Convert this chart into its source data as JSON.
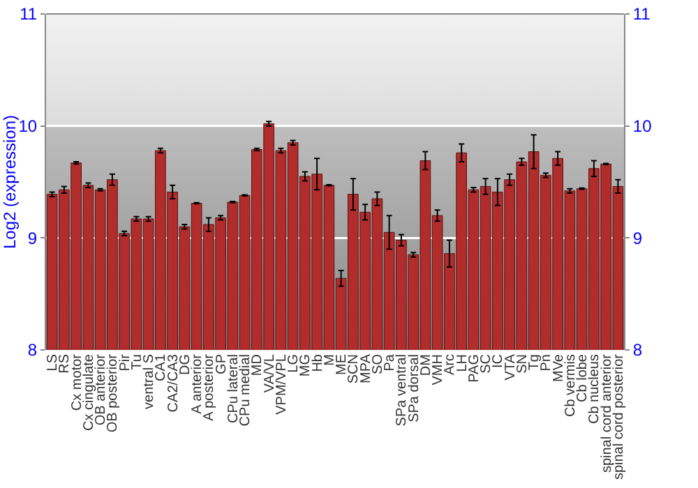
{
  "chart_data": {
    "type": "bar",
    "ylabel": "Log2 (expression)",
    "categories": [
      "LS",
      "RS",
      "Cx motor",
      "Cx cingulate",
      "OB anterior",
      "OB posterior",
      "Pir",
      "Tu",
      "ventral S",
      "CA1",
      "CA2/CA3",
      "DG",
      "A anterior",
      "A posterior",
      "GP",
      "CPu lateral",
      "CPu medial",
      "MD",
      "VA/VL",
      "VPM/VPL",
      "LG",
      "MG",
      "Hb",
      "M",
      "ME",
      "SCN",
      "MPA",
      "SO",
      "Pa",
      "SPa ventral",
      "SPa dorsal",
      "DM",
      "VMH",
      "Arc",
      "LH",
      "PAG",
      "SC",
      "IC",
      "VTA",
      "SN",
      "Tg",
      "Pn",
      "MVe",
      "Cb vermis",
      "Cb lobe",
      "Cb nucleus",
      "spinal cord anterior",
      "spinal cord posterior"
    ],
    "values": [
      9.39,
      9.43,
      9.67,
      9.47,
      9.43,
      9.52,
      9.04,
      9.17,
      9.17,
      9.78,
      9.41,
      9.1,
      9.31,
      9.12,
      9.18,
      9.32,
      9.38,
      9.79,
      10.02,
      9.78,
      9.85,
      9.55,
      9.57,
      9.47,
      8.64,
      9.39,
      9.23,
      9.35,
      9.05,
      8.98,
      8.85,
      9.69,
      9.2,
      8.86,
      9.76,
      9.43,
      9.46,
      9.41,
      9.52,
      9.68,
      9.77,
      9.56,
      9.71,
      9.42,
      9.44,
      9.62,
      9.66,
      9.46
    ],
    "errors": [
      0.02,
      0.03,
      0.01,
      0.02,
      0.01,
      0.05,
      0.02,
      0.02,
      0.02,
      0.02,
      0.06,
      0.02,
      0.005,
      0.06,
      0.02,
      0.005,
      0.005,
      0.01,
      0.02,
      0.02,
      0.02,
      0.04,
      0.14,
      0.005,
      0.07,
      0.14,
      0.07,
      0.06,
      0.15,
      0.05,
      0.02,
      0.08,
      0.05,
      0.12,
      0.08,
      0.02,
      0.07,
      0.12,
      0.05,
      0.03,
      0.15,
      0.02,
      0.06,
      0.02,
      0.005,
      0.07,
      0.005,
      0.06
    ],
    "color": "#b22c2c",
    "ylim": [
      8,
      11
    ],
    "yticks": [
      8,
      9,
      10,
      11
    ],
    "y2lim": [
      8,
      11
    ],
    "y2ticks": [
      8,
      9,
      10,
      11
    ],
    "grid": "y"
  }
}
